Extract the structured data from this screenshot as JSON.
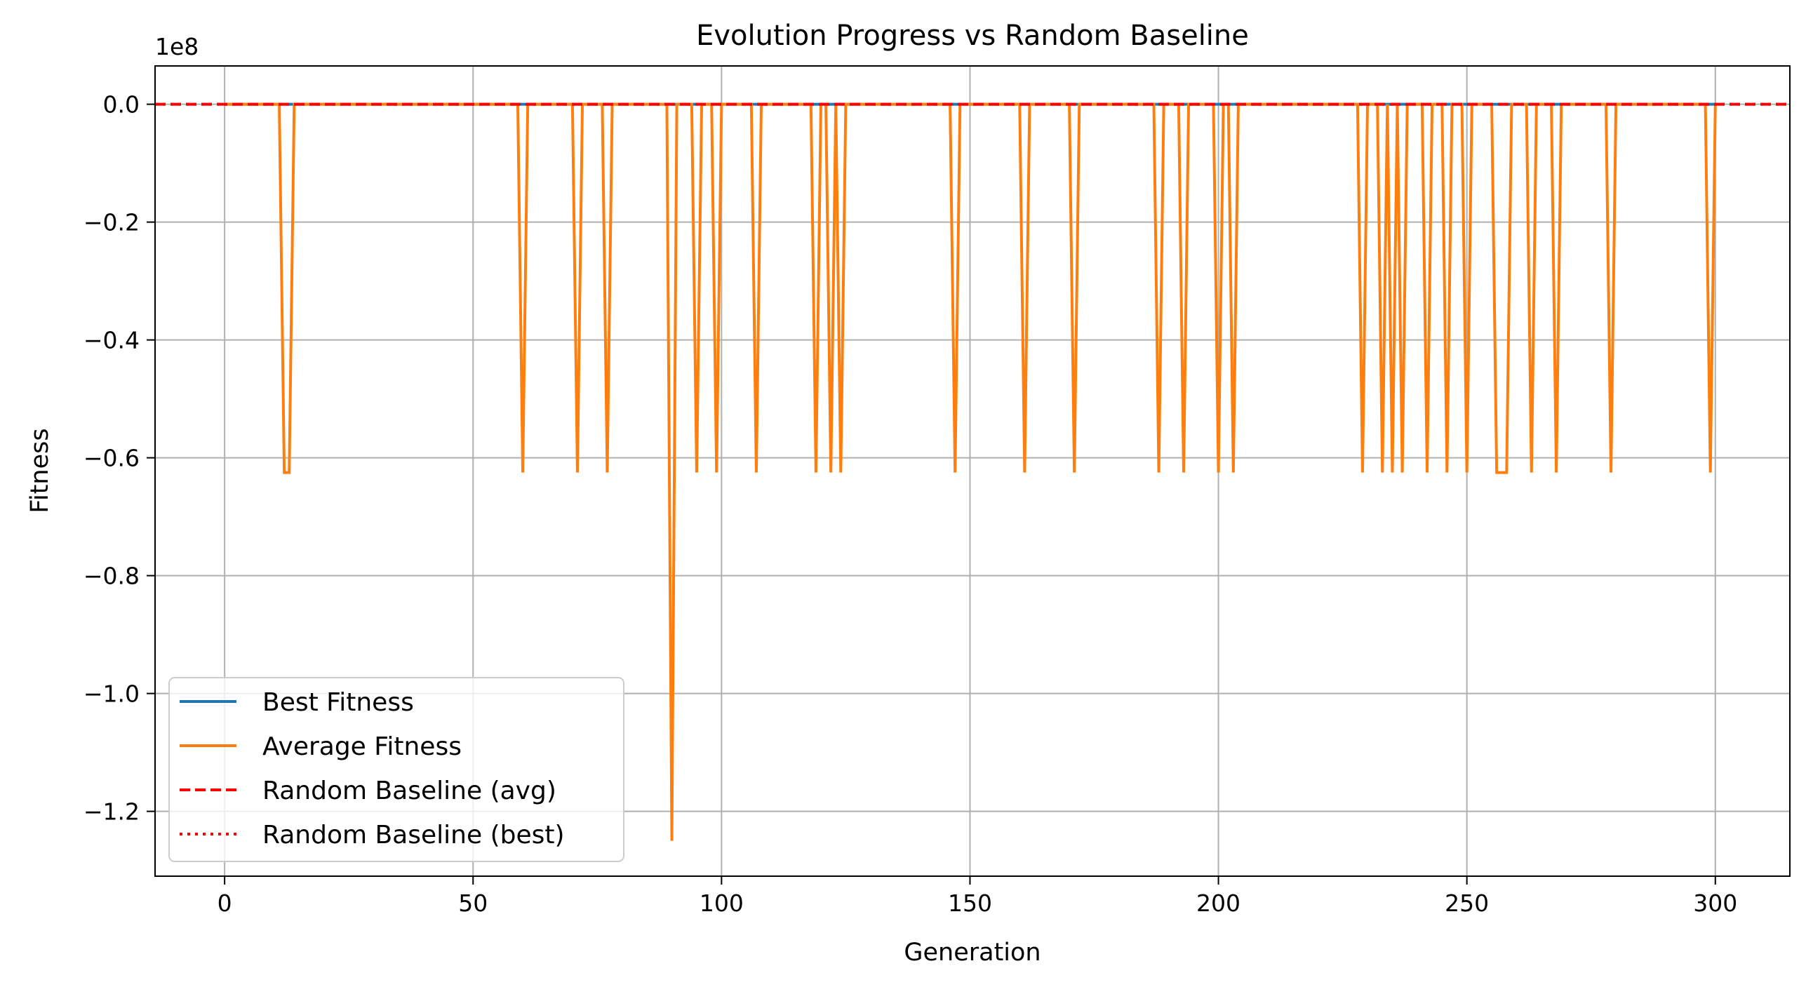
{
  "chart_data": {
    "type": "line",
    "title": "Evolution Progress vs Random Baseline",
    "xlabel": "Generation",
    "ylabel": "Fitness",
    "y_offset_label": "1e8",
    "xlim": [
      -14,
      315
    ],
    "ylim": [
      -1.31,
      0.065
    ],
    "xticks": [
      0,
      50,
      100,
      150,
      200,
      250,
      300
    ],
    "xtick_labels": [
      "0",
      "50",
      "100",
      "150",
      "200",
      "250",
      "300"
    ],
    "yticks": [
      0.0,
      -0.2,
      -0.4,
      -0.6,
      -0.8,
      -1.0,
      -1.2
    ],
    "ytick_labels": [
      "0.0",
      "−0.2",
      "−0.4",
      "−0.6",
      "−0.8",
      "−1.0",
      "−1.2"
    ],
    "grid": true,
    "legend_position": "lower-left",
    "series": [
      {
        "name": "Best Fitness",
        "color": "#1f77b4",
        "style": "solid",
        "x": [
          0,
          300
        ],
        "y": [
          0.0,
          0.0
        ]
      },
      {
        "name": "Average Fitness",
        "color": "#ff7f0e",
        "style": "solid",
        "baseline_y": 0.0,
        "x_range": [
          0,
          300
        ],
        "dips": [
          {
            "x": 12,
            "y": -0.625
          },
          {
            "x": 13,
            "y": -0.625
          },
          {
            "x": 60,
            "y": -0.625
          },
          {
            "x": 71,
            "y": -0.625
          },
          {
            "x": 77,
            "y": -0.625
          },
          {
            "x": 90,
            "y": -1.25
          },
          {
            "x": 95,
            "y": -0.625
          },
          {
            "x": 99,
            "y": -0.625
          },
          {
            "x": 107,
            "y": -0.625
          },
          {
            "x": 119,
            "y": -0.625
          },
          {
            "x": 122,
            "y": -0.625
          },
          {
            "x": 124,
            "y": -0.625
          },
          {
            "x": 147,
            "y": -0.625
          },
          {
            "x": 161,
            "y": -0.625
          },
          {
            "x": 171,
            "y": -0.625
          },
          {
            "x": 188,
            "y": -0.625
          },
          {
            "x": 193,
            "y": -0.625
          },
          {
            "x": 200,
            "y": -0.625
          },
          {
            "x": 203,
            "y": -0.625
          },
          {
            "x": 229,
            "y": -0.625
          },
          {
            "x": 233,
            "y": -0.625
          },
          {
            "x": 235,
            "y": -0.625
          },
          {
            "x": 237,
            "y": -0.625
          },
          {
            "x": 242,
            "y": -0.625
          },
          {
            "x": 246,
            "y": -0.625
          },
          {
            "x": 250,
            "y": -0.625
          },
          {
            "x": 256,
            "y": -0.625
          },
          {
            "x": 257,
            "y": -0.625
          },
          {
            "x": 258,
            "y": -0.625
          },
          {
            "x": 263,
            "y": -0.625
          },
          {
            "x": 268,
            "y": -0.625
          },
          {
            "x": 279,
            "y": -0.625
          },
          {
            "x": 299,
            "y": -0.625
          }
        ]
      },
      {
        "name": "Random Baseline (avg)",
        "color": "#ff0000",
        "style": "dashed",
        "y": 0.0
      },
      {
        "name": "Random Baseline (best)",
        "color": "#ff0000",
        "style": "dotted",
        "y": 0.0
      }
    ]
  }
}
